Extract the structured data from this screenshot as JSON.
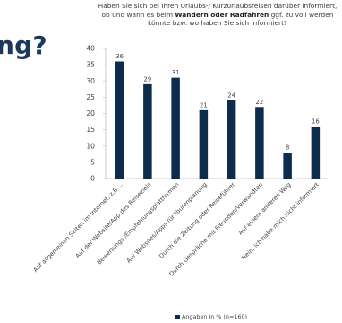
{
  "page": {
    "heading_fragment": "ng?"
  },
  "chart_data": {
    "type": "bar",
    "title_parts": [
      {
        "text": "Haben Sie sich bei Ihren Urlaubs-/ Kurzurlaubsreisen darüber informiert, ob und wann es beim ",
        "bold": false
      },
      {
        "text": "Wandern oder Radfahren",
        "bold": true
      },
      {
        "text": " ggf. zu voll werden könnte bzw. wo haben Sie sich informiert?",
        "bold": false
      }
    ],
    "categories": [
      "Auf allgemeinen Seiten im Internet, z.B....",
      "Auf der Website/App des Reiseziels",
      "Bewertungs-/Empfehlungsplattformen",
      "Auf Websites/Apps für Tourenplanung",
      "Durch die Zeitung oder Reiseführer",
      "Durch Gespräche mit Freunden/Verwandten",
      "Auf einem anderen Weg",
      "Nein, ich habe mich nicht informiert"
    ],
    "series": [
      {
        "name": "Angaben in % (n=160)",
        "values": [
          36,
          29,
          31,
          21,
          24,
          22,
          8,
          16
        ]
      }
    ],
    "ylim": [
      0,
      40
    ],
    "yticks": [
      0,
      5,
      10,
      15,
      20,
      25,
      30,
      35,
      40
    ],
    "grid": false,
    "legend": "bottom",
    "bar_color": "#0d2c4b"
  }
}
